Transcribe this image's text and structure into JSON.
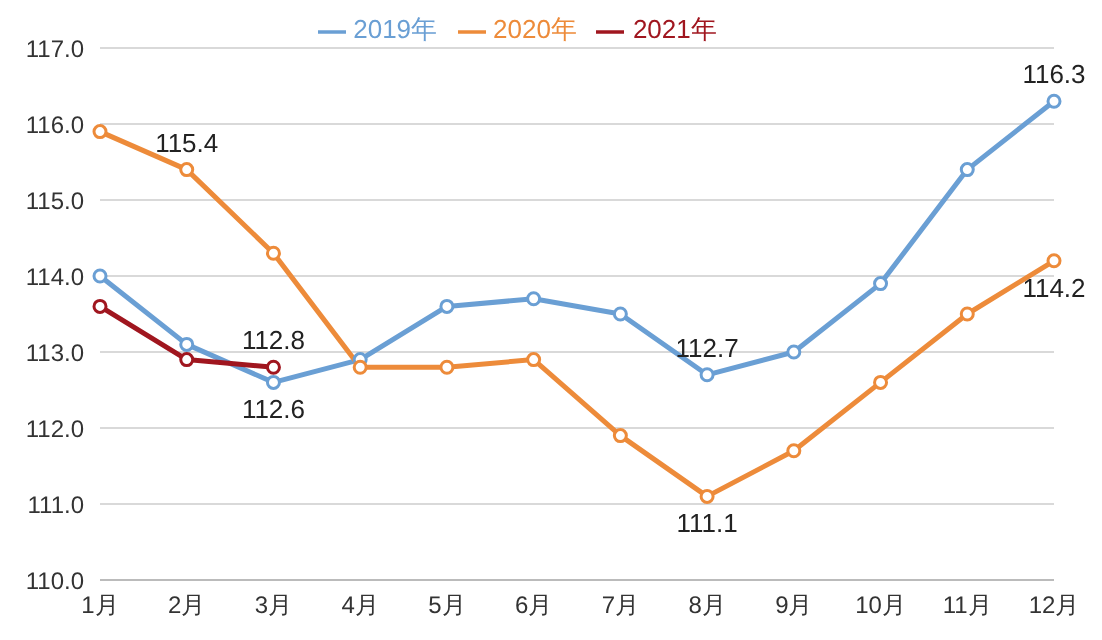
{
  "chart_data": {
    "type": "line",
    "categories": [
      "1月",
      "2月",
      "3月",
      "4月",
      "5月",
      "6月",
      "7月",
      "8月",
      "9月",
      "10月",
      "11月",
      "12月"
    ],
    "series": [
      {
        "name": "2019年",
        "color": "#6a9fd4",
        "values": [
          114.0,
          113.1,
          112.6,
          112.9,
          113.6,
          113.7,
          113.5,
          112.7,
          113.0,
          113.9,
          115.4,
          116.3
        ],
        "value_labels": [
          null,
          null,
          "112.6",
          null,
          null,
          null,
          null,
          "112.7",
          null,
          null,
          null,
          "116.3"
        ]
      },
      {
        "name": "2020年",
        "color": "#ed8b3a",
        "values": [
          115.9,
          115.4,
          114.3,
          112.8,
          112.8,
          112.9,
          111.9,
          111.1,
          111.7,
          112.6,
          113.5,
          114.2
        ],
        "value_labels": [
          null,
          "115.4",
          null,
          null,
          null,
          null,
          null,
          "111.1",
          null,
          null,
          null,
          "114.2"
        ]
      },
      {
        "name": "2021年",
        "color": "#a0161f",
        "values": [
          113.6,
          112.9,
          112.8,
          null,
          null,
          null,
          null,
          null,
          null,
          null,
          null,
          null
        ],
        "value_labels": [
          null,
          null,
          "112.8",
          null,
          null,
          null,
          null,
          null,
          null,
          null,
          null,
          null
        ]
      }
    ],
    "ylim": [
      110,
      117
    ],
    "yticks": [
      {
        "value": 110,
        "label": "110.0"
      },
      {
        "value": 111,
        "label": "111.0"
      },
      {
        "value": 112,
        "label": "112.0"
      },
      {
        "value": 113,
        "label": "113.0"
      },
      {
        "value": 114,
        "label": "114.0"
      },
      {
        "value": 115,
        "label": "115.0"
      },
      {
        "value": 116,
        "label": "116.0"
      },
      {
        "value": 117,
        "label": "117.0"
      }
    ],
    "grid": "y",
    "legend": "top",
    "marker": "circle",
    "line_style": "solid"
  }
}
